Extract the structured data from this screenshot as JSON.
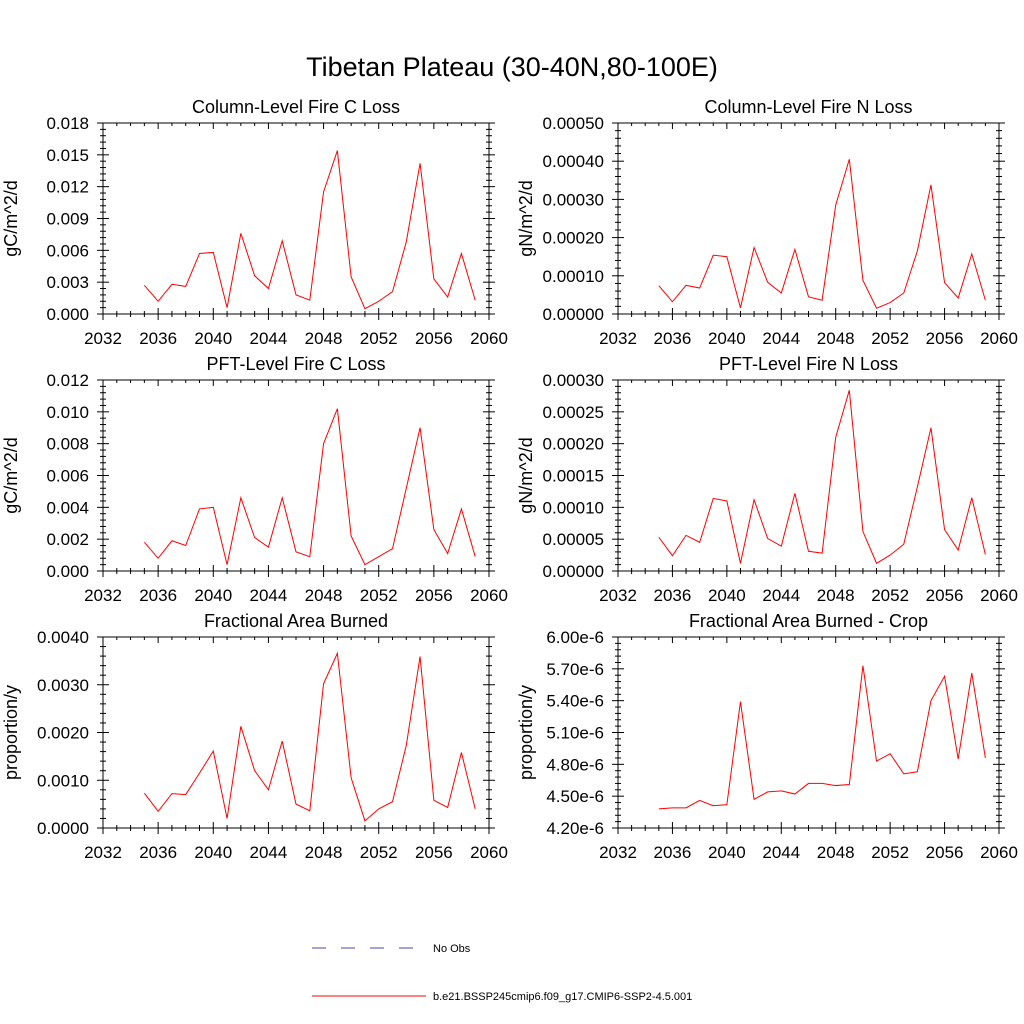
{
  "figure": {
    "title": "Tibetan Plateau (30-40N,80-100E)"
  },
  "legend": [
    {
      "label": "No Obs",
      "color": "#4a4aa8",
      "dash": true
    },
    {
      "label": "b.e21.BSSP245cmip6.f09_g17.CMIP6-SSP2-4.5.001",
      "color": "#ff0000",
      "dash": false
    }
  ],
  "chart_data": [
    {
      "type": "line",
      "title": "Column-Level Fire C Loss",
      "ylabel": "gC/m^2/d",
      "xlim": [
        2032,
        2060
      ],
      "xticks": [
        "2032",
        "2036",
        "2040",
        "2044",
        "2048",
        "2052",
        "2056",
        "2060"
      ],
      "ylim": [
        0,
        0.018
      ],
      "yticks": [
        "0.000",
        "0.003",
        "0.006",
        "0.009",
        "0.012",
        "0.015",
        "0.018"
      ],
      "x": [
        2035,
        2036,
        2037,
        2038,
        2039,
        2040,
        2041,
        2042,
        2043,
        2044,
        2045,
        2046,
        2047,
        2048,
        2049,
        2050,
        2051,
        2052,
        2053,
        2054,
        2055,
        2056,
        2057,
        2058,
        2059
      ],
      "series": [
        {
          "color": "#ff0000",
          "values": [
            0.0027,
            0.0012,
            0.0028,
            0.0026,
            0.0057,
            0.0058,
            0.0006,
            0.0076,
            0.0036,
            0.0024,
            0.0069,
            0.0018,
            0.0013,
            0.0115,
            0.0154,
            0.0035,
            0.0005,
            0.0012,
            0.0021,
            0.0068,
            0.0142,
            0.0033,
            0.0016,
            0.0057,
            0.0013
          ]
        }
      ]
    },
    {
      "type": "line",
      "title": "Column-Level Fire N Loss",
      "ylabel": "gN/m^2/d",
      "xlim": [
        2032,
        2060
      ],
      "xticks": [
        "2032",
        "2036",
        "2040",
        "2044",
        "2048",
        "2052",
        "2056",
        "2060"
      ],
      "ylim": [
        0,
        0.0005
      ],
      "yticks": [
        "0.00000",
        "0.00010",
        "0.00020",
        "0.00030",
        "0.00040",
        "0.00050"
      ],
      "x": [
        2035,
        2036,
        2037,
        2038,
        2039,
        2040,
        2041,
        2042,
        2043,
        2044,
        2045,
        2046,
        2047,
        2048,
        2049,
        2050,
        2051,
        2052,
        2053,
        2054,
        2055,
        2056,
        2057,
        2058,
        2059
      ],
      "series": [
        {
          "color": "#ff0000",
          "values": [
            7.4e-05,
            3.2e-05,
            7.5e-05,
            6.8e-05,
            0.000154,
            0.00015,
            1.6e-05,
            0.000174,
            8.3e-05,
            5.5e-05,
            0.000169,
            4.5e-05,
            3.6e-05,
            0.000285,
            0.000405,
            8.8e-05,
            1.5e-05,
            3e-05,
            5.5e-05,
            0.000165,
            0.000338,
            8.2e-05,
            4.2e-05,
            0.000157,
            3.6e-05
          ]
        }
      ]
    },
    {
      "type": "line",
      "title": "PFT-Level Fire C Loss",
      "ylabel": "gC/m^2/d",
      "xlim": [
        2032,
        2060
      ],
      "xticks": [
        "2032",
        "2036",
        "2040",
        "2044",
        "2048",
        "2052",
        "2056",
        "2060"
      ],
      "ylim": [
        0,
        0.012
      ],
      "yticks": [
        "0.000",
        "0.002",
        "0.004",
        "0.006",
        "0.008",
        "0.010",
        "0.012"
      ],
      "x": [
        2035,
        2036,
        2037,
        2038,
        2039,
        2040,
        2041,
        2042,
        2043,
        2044,
        2045,
        2046,
        2047,
        2048,
        2049,
        2050,
        2051,
        2052,
        2053,
        2054,
        2055,
        2056,
        2057,
        2058,
        2059
      ],
      "series": [
        {
          "color": "#ff0000",
          "values": [
            0.0018,
            0.0008,
            0.0019,
            0.0016,
            0.0039,
            0.004,
            0.0004,
            0.0046,
            0.0021,
            0.0015,
            0.0046,
            0.0012,
            0.0009,
            0.008,
            0.0102,
            0.0022,
            0.0004,
            0.0009,
            0.0014,
            0.0052,
            0.009,
            0.0026,
            0.0011,
            0.0039,
            0.0009
          ]
        }
      ]
    },
    {
      "type": "line",
      "title": "PFT-Level Fire N Loss",
      "ylabel": "gN/m^2/d",
      "xlim": [
        2032,
        2060
      ],
      "xticks": [
        "2032",
        "2036",
        "2040",
        "2044",
        "2048",
        "2052",
        "2056",
        "2060"
      ],
      "ylim": [
        0,
        0.0003
      ],
      "yticks": [
        "0.00000",
        "0.00005",
        "0.00010",
        "0.00015",
        "0.00020",
        "0.00025",
        "0.00030"
      ],
      "x": [
        2035,
        2036,
        2037,
        2038,
        2039,
        2040,
        2041,
        2042,
        2043,
        2044,
        2045,
        2046,
        2047,
        2048,
        2049,
        2050,
        2051,
        2052,
        2053,
        2054,
        2055,
        2056,
        2057,
        2058,
        2059
      ],
      "series": [
        {
          "color": "#ff0000",
          "values": [
            5.3e-05,
            2.4e-05,
            5.6e-05,
            4.5e-05,
            0.000114,
            0.00011,
            1.2e-05,
            0.000112,
            5.1e-05,
            3.9e-05,
            0.000122,
            3.1e-05,
            2.8e-05,
            0.00021,
            0.000284,
            6.2e-05,
            1.2e-05,
            2.5e-05,
            4.2e-05,
            0.000132,
            0.000225,
            6.5e-05,
            3.3e-05,
            0.000115,
            2.6e-05
          ]
        }
      ]
    },
    {
      "type": "line",
      "title": "Fractional Area Burned",
      "ylabel": "proportion/y",
      "xlim": [
        2032,
        2060
      ],
      "xticks": [
        "2032",
        "2036",
        "2040",
        "2044",
        "2048",
        "2052",
        "2056",
        "2060"
      ],
      "ylim": [
        0,
        0.004
      ],
      "yticks": [
        "0.0000",
        "0.0010",
        "0.0020",
        "0.0030",
        "0.0040"
      ],
      "x": [
        2035,
        2036,
        2037,
        2038,
        2039,
        2040,
        2041,
        2042,
        2043,
        2044,
        2045,
        2046,
        2047,
        2048,
        2049,
        2050,
        2051,
        2052,
        2053,
        2054,
        2055,
        2056,
        2057,
        2058,
        2059
      ],
      "series": [
        {
          "color": "#ff0000",
          "values": [
            0.00073,
            0.00035,
            0.00072,
            0.0007,
            0.00115,
            0.00161,
            0.0002,
            0.00213,
            0.0012,
            0.0008,
            0.00182,
            0.0005,
            0.00036,
            0.00302,
            0.00366,
            0.00105,
            0.00015,
            0.0004,
            0.00055,
            0.00173,
            0.00359,
            0.00058,
            0.00043,
            0.00158,
            0.0004
          ]
        }
      ]
    },
    {
      "type": "line",
      "title": "Fractional Area Burned - Crop",
      "ylabel": "proportion/y",
      "xlim": [
        2032,
        2060
      ],
      "xticks": [
        "2032",
        "2036",
        "2040",
        "2044",
        "2048",
        "2052",
        "2056",
        "2060"
      ],
      "ylim": [
        4.2e-06,
        6e-06
      ],
      "yticks": [
        "4.20e-6",
        "4.50e-6",
        "4.80e-6",
        "5.10e-6",
        "5.40e-6",
        "5.70e-6",
        "6.00e-6"
      ],
      "x": [
        2035,
        2036,
        2037,
        2038,
        2039,
        2040,
        2041,
        2042,
        2043,
        2044,
        2045,
        2046,
        2047,
        2048,
        2049,
        2050,
        2051,
        2052,
        2053,
        2054,
        2055,
        2056,
        2057,
        2058,
        2059
      ],
      "series": [
        {
          "color": "#ff0000",
          "values": [
            4.38e-06,
            4.39e-06,
            4.39e-06,
            4.46e-06,
            4.41e-06,
            4.42e-06,
            5.39e-06,
            4.47e-06,
            4.54e-06,
            4.55e-06,
            4.52e-06,
            4.62e-06,
            4.62e-06,
            4.6e-06,
            4.61e-06,
            5.73e-06,
            4.83e-06,
            4.9e-06,
            4.71e-06,
            4.73e-06,
            5.4e-06,
            5.63e-06,
            4.85e-06,
            5.66e-06,
            4.86e-06
          ]
        }
      ]
    }
  ]
}
